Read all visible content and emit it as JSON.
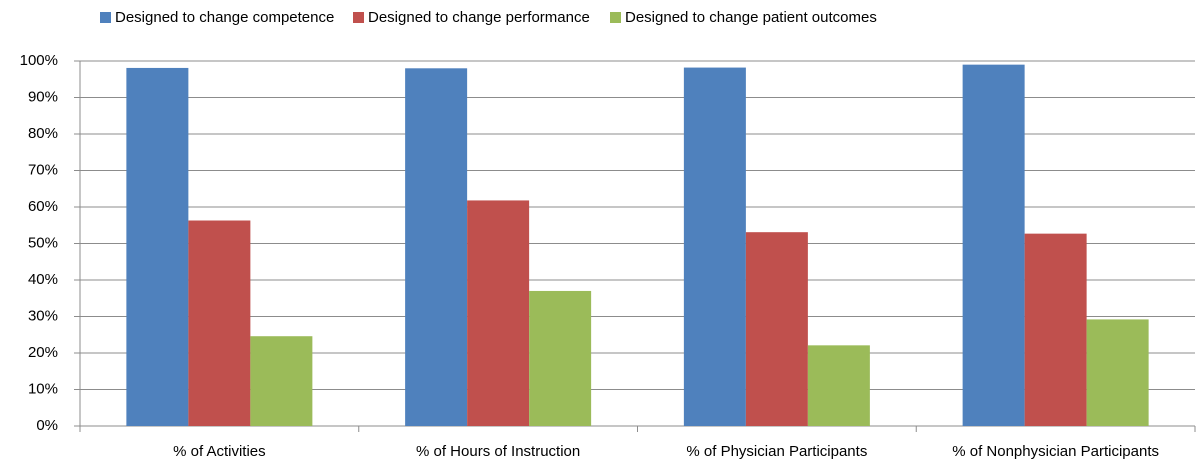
{
  "chart_data": {
    "type": "bar",
    "categories": [
      "% of Activities",
      "% of Hours of Instruction",
      "% of Physician Participants",
      "% of Nonphysician Participants"
    ],
    "series": [
      {
        "name": "Designed to change competence",
        "color": "#4f81bd",
        "values": [
          98.1,
          98,
          98.2,
          99
        ]
      },
      {
        "name": "Designed to change performance",
        "color": "#c0504d",
        "values": [
          56.3,
          61.8,
          53.1,
          52.7
        ]
      },
      {
        "name": "Designed to change patient outcomes",
        "color": "#9bbb59",
        "values": [
          24.6,
          37,
          22.1,
          29.2
        ]
      }
    ],
    "ylim": [
      0,
      100
    ],
    "yticks": [
      {
        "value": 0,
        "label": "0%"
      },
      {
        "value": 10,
        "label": "10%"
      },
      {
        "value": 20,
        "label": "20%"
      },
      {
        "value": 30,
        "label": "30%"
      },
      {
        "value": 40,
        "label": "40%"
      },
      {
        "value": 50,
        "label": "50%"
      },
      {
        "value": 60,
        "label": "60%"
      },
      {
        "value": 70,
        "label": "70%"
      },
      {
        "value": 80,
        "label": "80%"
      },
      {
        "value": 90,
        "label": "90%"
      },
      {
        "value": 100,
        "label": "100%"
      }
    ],
    "grid": true,
    "legend": "top"
  }
}
